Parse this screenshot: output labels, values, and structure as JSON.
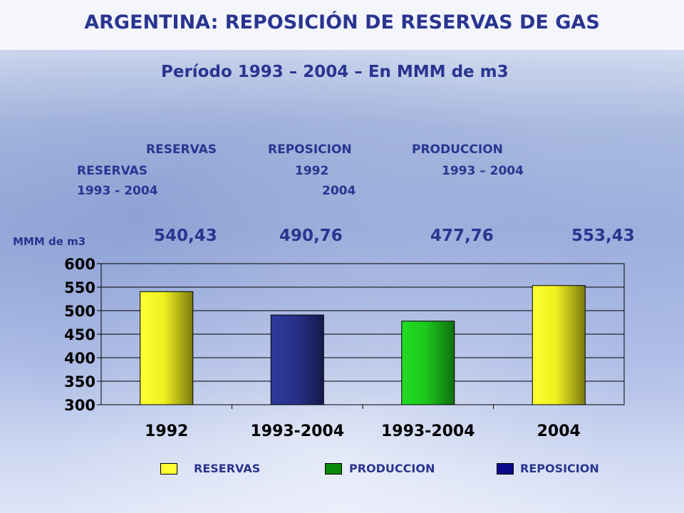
{
  "title": "ARGENTINA: REPOSICIÓN DE RESERVAS DE GAS",
  "subtitle": "Período 1993 – 2004 – En MMM de m3",
  "header_row1": [
    "RESERVAS",
    "REPOSICION",
    "PRODUCCION"
  ],
  "header_row2": [
    "RESERVAS",
    "1992",
    "1993 – 2004"
  ],
  "header_row3": [
    "1993 - 2004",
    "2004"
  ],
  "unit_label": "MMM de m3",
  "value_labels": [
    "540,43",
    "490,76",
    "477,76",
    "553,43"
  ],
  "colors": {
    "title": "#2a3590",
    "reservas": "#ffff33",
    "reservas_dark": "#7a7a10",
    "reposicion": "#2e3a9c",
    "reposicion_dark": "#141a4a",
    "produccion": "#22dd22",
    "produccion_dark": "#0f6f0f"
  },
  "chart_data": {
    "type": "bar",
    "categories": [
      "1992",
      "1993-2004",
      "1993-2004",
      "2004"
    ],
    "values": [
      540.43,
      490.76,
      477.76,
      553.43
    ],
    "bar_series": [
      "reservas",
      "reposicion",
      "produccion",
      "reservas"
    ],
    "yticks": [
      "600",
      "550",
      "500",
      "450",
      "400",
      "350",
      "300"
    ],
    "ylim": [
      300,
      600
    ],
    "ystep": 50,
    "grid": true,
    "legend": {
      "position": "bottom",
      "items": [
        {
          "label": "RESERVAS",
          "color": "#ffff33"
        },
        {
          "label": "PRODUCCION",
          "color": "#0a8a0a"
        },
        {
          "label": "REPOSICION",
          "color": "#0a0a8a"
        }
      ]
    }
  }
}
